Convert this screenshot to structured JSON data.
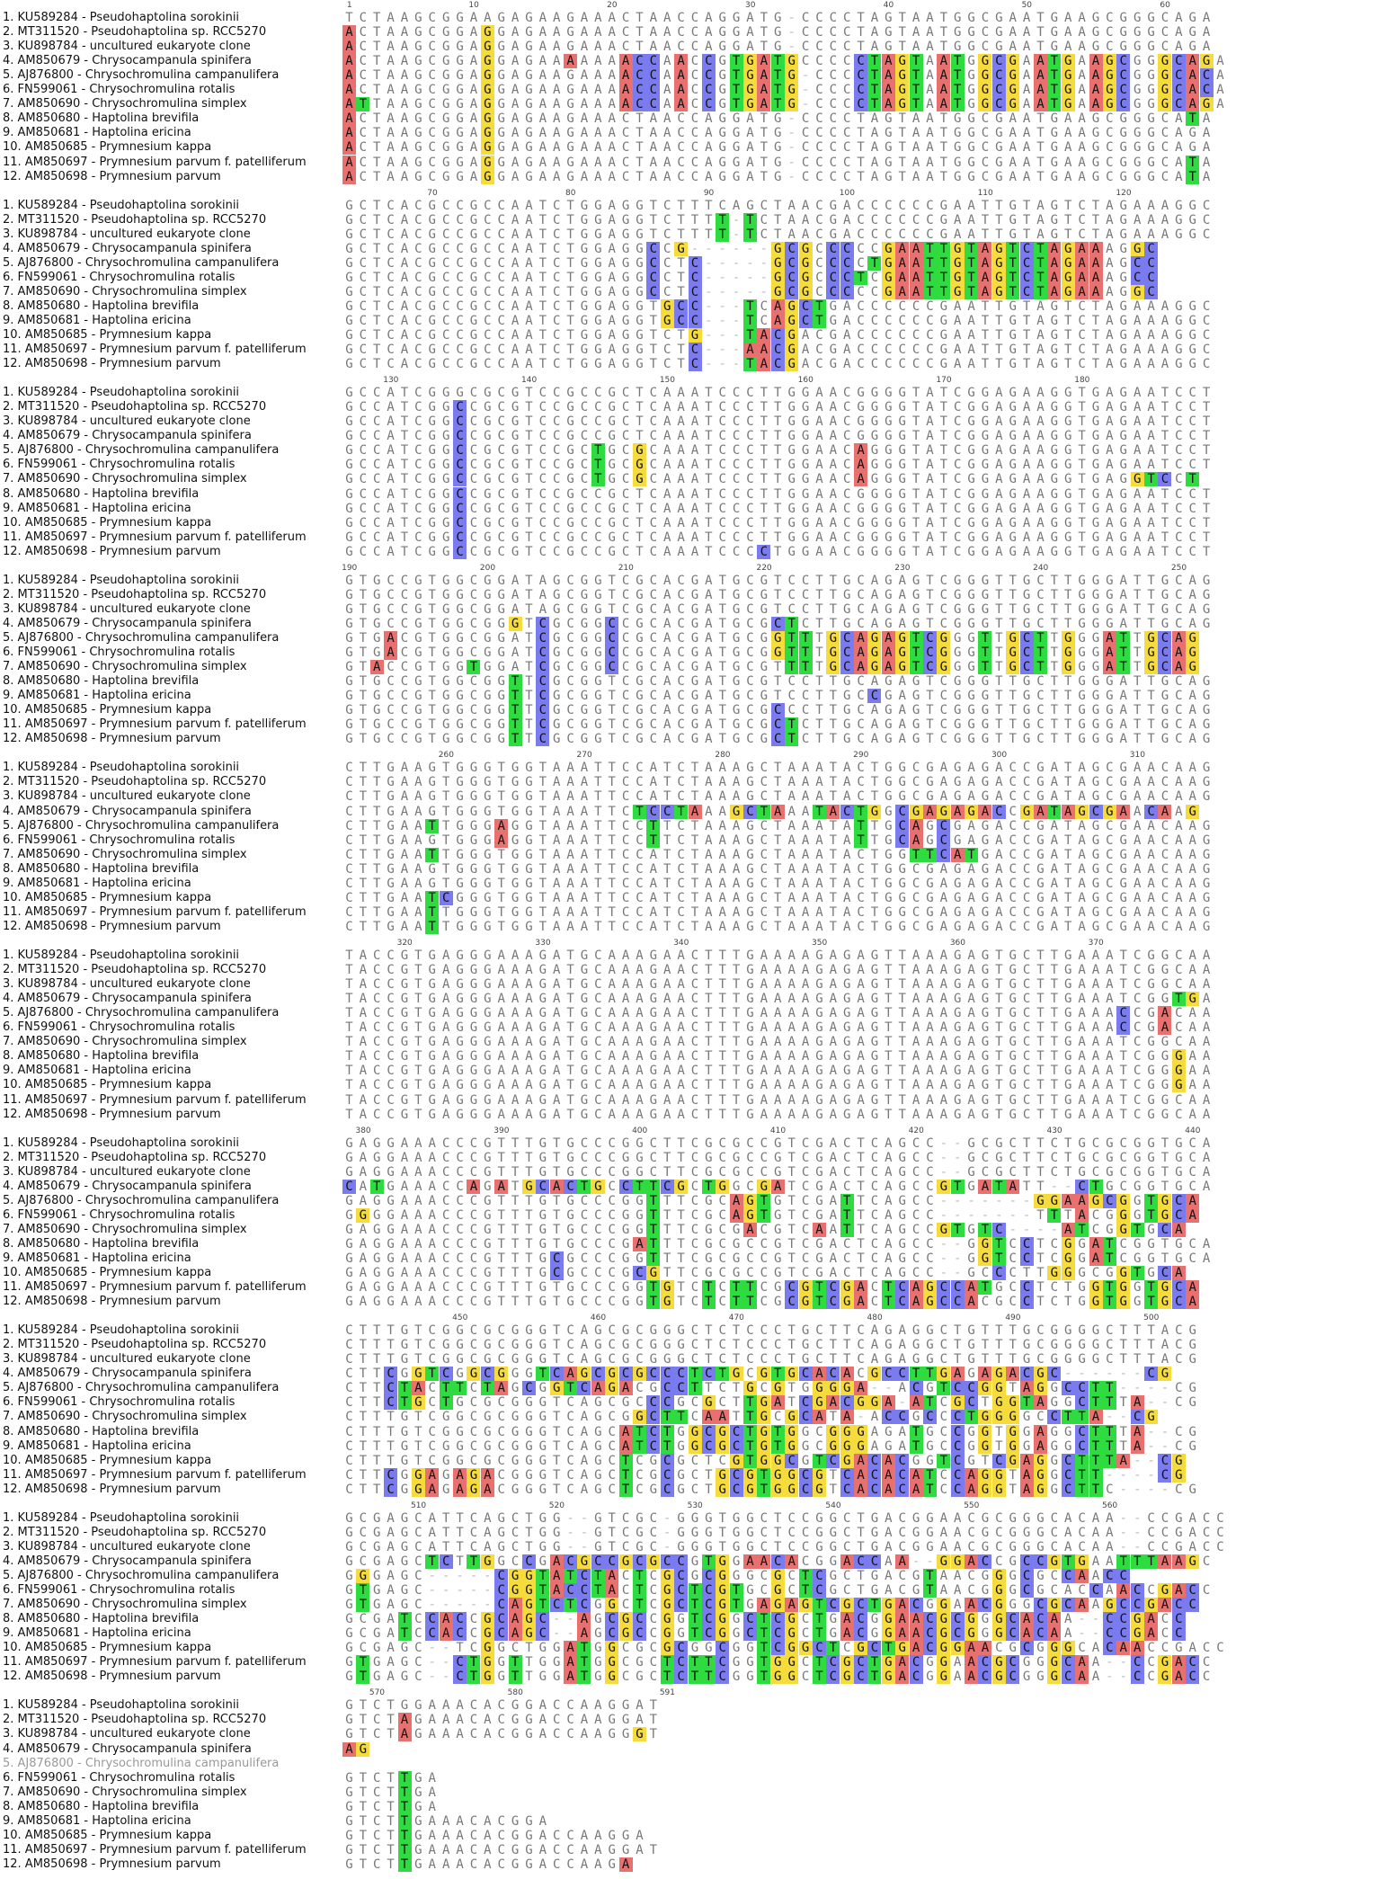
{
  "alignment": {
    "sequences": [
      "1. KU589284 - Pseudohaptolina sorokinii",
      "2. MT311520 - Pseudohaptolina sp. RCC5270",
      "3. KU898784 - uncultured eukaryote clone",
      "4. AM850679 - Chrysocampanula spinifera",
      "5. AJ876800 - Chrysochromulina campanulifera",
      "6. FN599061 - Chrysochromulina rotalis",
      "7. AM850690 - Chrysochromulina simplex",
      "8. AM850680 - Haptolina brevifila",
      "9. AM850681 - Haptolina ericina",
      "10. AM850685 - Prymnesium kappa",
      "11. AM850697 - Prymnesium parvum f. patelliferum",
      "12. AM850698 - Prymnesium parvum"
    ],
    "base_colors": {
      "A": "#e8706e",
      "C": "#7b7bf0",
      "G": "#f5dc3c",
      "T": "#2edc40"
    },
    "blocks": [
      {
        "ruler": [
          "1",
          "10",
          "20",
          "30",
          "40",
          "50",
          "60"
        ],
        "rows": [
          "TCTAAGCGGAAGAGAAGAAACTAACCAGGATG-CCCCTAGTAATGGCGAATGAAGCGGGCAGA",
          "ACTAAGCGGAGGAGAAGAAACTAACCAGGATG-CCCCTAGTAATGGCGAATGAAGCGGGCAGA",
          "ACTAAGCGGAGGAGAAGAAACTAACCAGGATG-CCCCTAGTAATGGCGAATGAAGCGGGCAGA",
          "ACTAAGCGGAGGAGAAAAAAACCAACCGTGATGCCCCCTAGTAATGGCGAATGAAGCGGGCAGA",
          "ACTAAGCGGAGGAGAAGAAAACCAACCGTGATG-CCCCTAGTAATGGCGAATGAAGCGGGCACA",
          "ACTAAGCGGAGGAGAAGAAAACCAACCGTGATG-CCCCTAGTAATGGCGAATGAAGCGGGCACA",
          "ATTAAGCGGAGGAGAAGAAAACCAACCGTGATG-CCCCTAGTAATGGCGAATGAAGCGGGCAGA",
          "ACTAAGCGGAGGAGAAGAAACTAACCAGGATG-CCCCTAGTAATGGCGAATGAAGCGGGCATA",
          "ACTAAGCGGAGGAGAAGAAACTAACCAGGATG-CCCCTAGTAATGGCGAATGAAGCGGGCAGA",
          "ACTAAGCGGAGGAGAAGAAACTAACCAGGATG-CCCCTAGTAATGGCGAATGAAGCGGGCAGA",
          "ACTAAGCGGAGGAGAAGAAACTAACCAGGATG-CCCCTAGTAATGGCGAATGAAGCGGGCATA",
          "ACTAAGCGGAGGAGAAGAAACTAACCAGGATG-CCCCTAGTAATGGCGAATGAAGCGGGCATA"
        ]
      },
      {
        "ruler": [
          "70",
          "80",
          "90",
          "100",
          "110",
          "120"
        ],
        "rows": [
          "GCTCACGCCGCCAATCTGGAGGTCTTTCAGCTAACGACCCCCCGAATTGTAGTCTAGAAAGGC",
          "GCTCACGCCGCCAATCTGGAGGTCTTTT-TCTAACGACCCCCCGAATTGTAGTCTAGAAAGGC",
          "GCTCACGCCGCCAATCTGGAGGTCTTTT-TCTAACGACCCCCCGAATTGTAGTCTAGAAAGGC",
          "GCTCACGCCGCCAATCTGGAGGCCG------GCGCCCCCGAATTGTAGTCTAGAAAGGC",
          "GCTCACGCCGCCAATCTGGAGGCCTC-----GCGCCCCTGAATTGTAGTCTAGAAAGCC",
          "GCTCACGCCGCCAATCTGGAGGCCTC-----GCGCCCTCGAATTGTAGTCTAGAAAGCC",
          "GCTCACGCCGCCAATCTGGAGGCCTC-----GCGCCCCCGAATTGTAGTCTAGAAAGGC",
          "GCTCACGCCGCCAATCTGGAGGTGCC---TCAGCTGACCCCCCGAATTGTAGTCTAGAAAGGC",
          "GCTCACGCCGCCAATCTGGAGGTGCC---TCAGCTGACCCCCCGAATTGTAGTCTAGAAAGGC",
          "GCTCACGCCGCCAATCTGGAGGTCTG---TACGACGACCCCCCGAATTGTAGTCTAGAAAGGC",
          "GCTCACGCCGCCAATCTGGAGGTCTC---AACGACGACCCCCCGAATTGTAGTCTAGAAAGGC",
          "GCTCACGCCGCCAATCTGGAGGTCTC---TACGACGACCCCCCGAATTGTAGTCTAGAAAGGC"
        ]
      },
      {
        "ruler": [
          "130",
          "140",
          "150",
          "160",
          "170",
          "180"
        ],
        "rows": [
          "GCCATCGGGCGCGTCCGCCGCTCAAATCCCTTGGAACGGGGTATCGGAGAAGGTGAGAATCCT",
          "GCCATCGGCCGCGTCCGCCGCTCAAATCCCTTGGAACGGGGTATCGGAGAAGGTGAGAATCCT",
          "GCCATCGGCCGCGTCCGCCGCTCAAATCCCTTGGAACGGGGTATCGGAGAAGGTGAGAATCCT",
          "GCCATCGGCCGCGTCCGCCGCTCAAATCCCTTGGAACGGGGTATCGGAGAAGGTGAGAATCCT",
          "GCCATCGGCCGCGTCCGCTGCGCAAATCCCTTGGAACAGGGTATCGGAGAAGGTGAGAATCCT",
          "GCCATCGGCCGCGTCCGCTGCGCAAATCCCTTGGAACAGGGTATCGGAGAAGGTGAGAATCCT",
          "GCCATCGGCCGCGTCCGCTGCGCAAATCCCTTGGAACAGGGTATCGGAGAAGGTGAGGTCCT",
          "GCCATCGGCCGCGTCCGCCGCTCAAATCCCTTGGAACGGGGTATCGGAGAAGGTGAGAATCCT",
          "GCCATCGGCCGCGTCCGCCGCTCAAATCCCTTGGAACGGGGTATCGGAGAAGGTGAGAATCCT",
          "GCCATCGGCCGCGTCCGCCGCTCAAATCCCTTGGAACGGGGTATCGGAGAAGGTGAGAATCCT",
          "GCCATCGGCCGCGTCCGCCGCTCAAATCCCTTGGAACGGGGTATCGGAGAAGGTGAGAATCCT",
          "GCCATCGGCCGCGTCCGCCGCTCAAATCCCCTGGAACGGGGTATCGGAGAAGGTGAGAATCCT"
        ]
      },
      {
        "ruler": [
          "190",
          "200",
          "210",
          "220",
          "230",
          "240",
          "250"
        ],
        "rows": [
          "GTGCCGTGGCGGATAGCGGTCGCACGATGCGTCCTTGCAGAGTCGGGTTGCTTGGGATTGCAG",
          "GTGCCGTGGCGGATAGCGGTCGCACGATGCGTCCTTGCAGAGTCGGGTTGCTTGGGATTGCAG",
          "GTGCCGTGGCGGATAGCGGTCGCACGATGCGTCCTTGCAGAGTCGGGTTGCTTGGGATTGCAG",
          "GTGCCGTGGCGGGTCGCGGCCGCACGATGCGCTCTTGCAGAGTCGGGTTGCTTGGGATTGCAG",
          "GTGACGTGGCGGATCGCGGCCGCACGATGCGGTTTGCAGAGTCGGGTTGCTTGGGATTGCAG",
          "GTGACGTGGCGGATCGCGGCCGCACGATGCGGTTTGCAGAGTCGGGTTGCTTGGGATTGCAG",
          "GTACCGTGGTGGATCGCGGCCGCACGATGCGTTTTGCAGAGTCGGGTTGCTTGGGATTGCAG",
          "GTGCCGTGGCGGTTCGCGGTCGCACGATGCGTCCTTGCAGAGTCGGGTTGCTTGGGATTGCAG",
          "GTGCCGTGGCGGTTCGCGGTCGCACGATGCGTCCTTGCCGAGTCGGGTTGCTTGGGATTGCAG",
          "GTGCCGTGGCGGTTCGCGGTCGCACGATGCGCCCTTGCAGAGTCGGGTTGCTTGGGATTGCAG",
          "GTGCCGTGGCGGTTCGCGGTCGCACGATGCGCTCTTGCAGAGTCGGGTTGCTTGGGATTGCAG",
          "GTGCCGTGGCGGTTCGCGGTCGCACGATGCGCTCTTGCAGAGTCGGGTTGCTTGGGATTGCAG"
        ]
      },
      {
        "ruler": [
          "260",
          "270",
          "280",
          "290",
          "300",
          "310"
        ],
        "rows": [
          "CTTGAAGTGGGTGGTAAATTCCATCTAAAGCTAAATACTGGCGAGAGACCGATAGCGAACAAG",
          "CTTGAAGTGGGTGGTAAATTCCATCTAAAGCTAAATACTGGCGAGAGACCGATAGCGAACAAG",
          "CTTGAAGTGGGTGGTAAATTCCATCTAAAGCTAAATACTGGCGAGAGACCGATAGCGAACAAG",
          "CTTGAAGTGGGTGGTAAATTCTCCTAAAGCTAAATACTGGCGAGAGACCGATAGCGAACAAG",
          "CTTGAATTGGGAGGTAAATTCCTTCTAAAGCTAAATATTGCAGCGAGACCGATAGCGAACAAG",
          "CTTGAAGTGGGAGGTAAATTCCTTCTAAAGCTAAATATTGCAGCGAGACCGATAGCGAACAAG",
          "CTTGAATTGGGTGGTAAATTCCATCTAAAGCTAAATACTGGTTCATGACCGATAGCGAACAAG",
          "CTTGAAGTGGGTGGTAAATTCCATCTAAAGCTAAATACTGGCGAGAGACCGATAGCGAACAAG",
          "CTTGAAGTGGGTGGTAAATTCCATCTAAAGCTAAATACTGGCGAGAGACCGATAGCGAACAAG",
          "CTTGAATCGGGTGGTAAATTCCATCTAAAGCTAAATACTGGCGAGAGACCGATAGCGAACAAG",
          "CTTGAATTGGGTGGTAAATTCCATCTAAAGCTAAATACTGGCGAGAGACCGATAGCGAACAAG",
          "CTTGAATTGGGTGGTAAATTCCATCTAAAGCTAAATACTGGCGAGAGACCGATAGCGAACAAG"
        ]
      },
      {
        "ruler": [
          "320",
          "330",
          "340",
          "350",
          "360",
          "370"
        ],
        "rows": [
          "TACCGTGAGGGAAAGATGCAAAGAACTTTGAAAAGAGAGTTAAAGAGTGCTTGAAATCGGCAA",
          "TACCGTGAGGGAAAGATGCAAAGAACTTTGAAAAGAGAGTTAAAGAGTGCTTGAAATCGGCAA",
          "TACCGTGAGGGAAAGATGCAAAGAACTTTGAAAAGAGAGTTAAAGAGTGCTTGAAATCGGCAA",
          "TACCGTGAGGGAAAGATGCAAAGAACTTTGAAAAGAGAGTTAAAGAGTGCTTGAAATCGGTGA",
          "TACCGTGAGGGAAAGATGCAAAGAACTTTGAAAAGAGAGTTAAAGAGTGCTTGAAACCGACAA",
          "TACCGTGAGGGAAAGATGCAAAGAACTTTGAAAAGAGAGTTAAAGAGTGCTTGAAACCGACAA",
          "TACCGTGAGGGAAAGATGCAAAGAACTTTGAAAAGAGAGTTAAAGAGTGCTTGAAATCGGCAA",
          "TACCGTGAGGGAAAGATGCAAAGAACTTTGAAAAGAGAGTTAAAGAGTGCTTGAAATCGGGAA",
          "TACCGTGAGGGAAAGATGCAAAGAACTTTGAAAAGAGAGTTAAAGAGTGCTTGAAATCGGGAA",
          "TACCGTGAGGGAAAGATGCAAAGAACTTTGAAAAGAGAGTTAAAGAGTGCTTGAAATCGGGAA",
          "TACCGTGAGGGAAAGATGCAAAGAACTTTGAAAAGAGAGTTAAAGAGTGCTTGAAATCGGCAA",
          "TACCGTGAGGGAAAGATGCAAAGAACTTTGAAAAGAGAGTTAAAGAGTGCTTGAAATCGGCAA"
        ]
      },
      {
        "ruler": [
          "380",
          "390",
          "400",
          "410",
          "420",
          "430",
          "440"
        ],
        "rows": [
          "GAGGAAACCCGTTTGTGCCCGGCTTCGCGCCGTCGACTCAGCC--GCGCTTCTGCGCGGTGCA",
          "GAGGAAACCCGTTTGTGCCCGGCTTCGCGCCGTCGACTCAGCC--GCGCTTCTGCGCGGTGCA",
          "GAGGAAACCCGTTTGTGCCCGGCTTCGCGCCGTCGACTCAGCC--GCGCTTCTGCGCGGTGCA",
          "CATGAAACCAGATGCACTGCCTTCGCTGGCGATCGACTCAGCCGTGATATT--CTGCGGTGCA",
          "GAGGAAACCCGTTTGTGCCCGGTTTCGCAGTGTCGATTCAGCC-------GGAAGCGGTGCA",
          "GGGGAAACCCGTTTGTGCCCGGTTTCGCAGTGTCGATTCAGCC-------TTTACGGGTGCA",
          "GAGGAAACCCGTTTGTGCCCGGTTTCGCGACGTCAATTCAGCCGTGTC----ATCGGTGCA",
          "GAGGAAACCCGTTTGTGCCCGATTTCGCGCCGTCGACTCAGCC--GGTCCTCGGATCGGTGCA",
          "GAGGAAACCCGTTTGCGCCCGGTTTCGCGCCGTCGACTCAGCC--GGTCCTCGGATCGGTGCA",
          "GAGGAAACCCGTTTGCGCCCGCGTTCGCGCCGTCGACTCAGCC--GCCCTTGGGCGGTGCA",
          "GAGGAAACCCGTTTGTGCCCGGTGTCTCTTCGCGTCGACTCAGCCATGCCTCTGGTGGTGCA",
          "GAGGAAACCCGTTTGTGCCCGGTGTCTCTTCGCGTCGACTCAGCCACGCCTCTGGTGGTGCA"
        ]
      },
      {
        "ruler": [
          "450",
          "460",
          "470",
          "480",
          "490",
          "500"
        ],
        "rows": [
          "CTTTGTCGGCGCGGGTCAGCGCGGGCTCTCCCTGCTTCAGAGGCTGTTTGCGGGGCTTTACG",
          "CTTTGTCGGCGCGGGTCAGCGCGGGCTCTCCCTGCTTCAGAGGCTGTTTGCGGGGCTTTACG",
          "CTTTGTCGGCGCGGGTCAGCGCGGGCTCTCCCTGCTTCAGAGGCTGTTTGCGGGGCTTTACG",
          "CTTCGGTCGGCGGGTCAGCGCGCCCTCTGCGTGCACACGCCTTGAGAGACGC------CG",
          "CTTCTACTTCTAGCGGTCAGACGCCTTCTGCGTGGGGA--ACGTCCGGTAGGCCTT----CG",
          "CTTCTGCTGCGCGGGTCAGCGCCCGCGCTTGATCGACGGA-ATCGCTGGTAGGCTTTA--CG",
          "CTTTGTCGGCGCGGGTCAGCGGCTTCAATTGCGCATA-ACCGCCCTGGGGCCTTA--CG",
          "CTTTGTCGGCGCGGGTCAGCATCTGGCGCTGTGGCGGGAGATGCCGGTGGAGGCTTTA--CG",
          "CTTTGTCGGCGCGGGTCAGCATCTGGCGCTGTGGCGGGAGATGCCGGTGGAGGCTTTA--CG",
          "CTTTGTCGGCGCGGGTCAGCTCGCGCTCGTGGCGTCGACACGGTCGTCGAGGCTTTA--CG",
          "CTTCGGAGAGACGGGTCAGCTCGCGCTGCGTGGCGTCACACATCCAGGTAGGCTT----CG",
          "CTTCGGAGAGACGGGTCAGCTCGCGCTGCGTGGCGTCACACATCCAGGTAGGCTTC----CG"
        ]
      },
      {
        "ruler": [
          "510",
          "520",
          "530",
          "540",
          "550",
          "560"
        ],
        "rows": [
          "GCGAGCATTCAGCTGG--GTCGC-GGGTGGCTCCGGCTGACGGAACGCGGGCACAA--CCGACC",
          "GCGAGCATTCAGCTGG--GTCGC-GGGTGGCTCCGGCTGACGGAACGCGGGCACAA--CCGACC",
          "GCGAGCATTCAGCTGG--GTCGC-GGGTGGCTCCGGCTGACGGAACGCGGGCACAA--CCGACC",
          "GCGAGCTCTTGGCCGACGCCGCGCCGTGGAACACGGACCAA--GGACCGCCGTGAATTTAAGC",
          "GGGAGC-----CGGTATCTACTCGCGCGGGCGCTCGCTGACGTAACGGGCGCCAACC",
          "GTGAGC-----CGGTACCTACTCGCTCGTGCGCTCGCTGACGTAACGGGCGCACCAACCGACC",
          "GTGAGC-----CAGTCTCGGCTCGCTCGTGAGAGTCGCTGACGGAACGGGCGCAAGCCGACC",
          "GCGATCCACCGCAGC--AGCGCCGGTCGGCTCGCTGACGGAACGCGGGCACAA--CCGACC",
          "GCGATCCACCGCAGC--AGCGCCGGTCGGCTCGCTGACGGAACGCGGGCACAA--CCGACC",
          "GCGAGC--TCGGCTGGATGGCGCGCGGCGGTCGGCTCGCTGACGGAACGCGGGCACAACCGACC",
          "GTGAGC--CTGGTTGGATGGCGCTCTTCGGTGGCTCGCTGACGGAACGCGGGCAA--CCGACC",
          "GTGAGC--CTGGTTGGATGGCGCTCTTCGGTGGCTCGCTGACGGAACGCGGGCAA--CCGACC"
        ]
      },
      {
        "ruler": [
          "570",
          "580",
          "591"
        ],
        "rows": [
          "GTCTGGAAACACGGACCAAGGAT",
          "GTCTAGAAACACGGACCAAGGAT",
          "GTCTAGAAACACGGACCAAGGGT",
          "AG",
          "",
          "GTCTTGA",
          "GTCTTGA",
          "GTCTTGA",
          "GTCTTGAAACACGGA",
          "GTCTTGAAACACGGACCAAGGA",
          "GTCTTGAAACACGGACCAAGGAT",
          "GTCTTGAAACACGGACCAAGA"
        ]
      }
    ]
  }
}
